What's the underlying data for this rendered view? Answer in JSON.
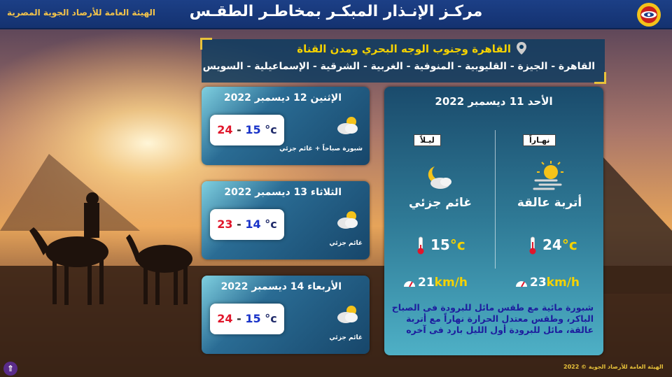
{
  "header": {
    "title": "مركـز الإنـذار المبكـر بمخاطـر الطقـس",
    "organization": "الهيئة العامة للأرصاد الجوية المصرية"
  },
  "region": {
    "name": "القاهرة وجنوب الوجه البحري ومدن القناة",
    "cities": "القاهرة - الجيزة - القليوبية - المنوفية - الغربية - الشرقية - الإسماعيلية - السويس"
  },
  "forecasts": [
    {
      "date": "الإثنين 12 ديسمبر 2022",
      "low": "15",
      "high": "24",
      "deg": "°c",
      "condition": "شبورة صباحاً + غائم جزئي",
      "icon": "cloud-sun-icon"
    },
    {
      "date": "الثلاثاء 13 ديسمبر 2022",
      "low": "14",
      "high": "23",
      "deg": "°c",
      "condition": "غائم جزئي",
      "icon": "cloud-sun-icon"
    },
    {
      "date": "الأربعاء 14 ديسمبر 2022",
      "low": "15",
      "high": "24",
      "deg": "°c",
      "condition": "غائم جزئي",
      "icon": "cloud-sun-icon"
    }
  ],
  "today": {
    "date": "الأحد 11 ديسمبر 2022",
    "day_label": "نهـاراً",
    "night_label": "ليـلاً",
    "day_condition": "أتربة عالقة",
    "night_condition": "غائم جزئي",
    "day_temp": "24",
    "night_temp": "15",
    "deg": "°c",
    "day_wind": "23",
    "night_wind": "21",
    "wind_unit": "km/h",
    "description": "شبورة مائية مع طقس مائل للبرودة فى الصباح الباكر، وطقس معتدل الحرارة نهاراً مع أتربة عالقة، مائل للبرودة أول الليل بارد فى آخره"
  },
  "footer": {
    "copyright": "الهيئة العامة للأرصاد الجوية © 2022",
    "scroll_button": "⇑"
  },
  "colors": {
    "accent_yellow": "#f5d200",
    "header_blue": "#1c3f86",
    "high_temp_red": "#e0162b",
    "low_temp_blue": "#1832c8",
    "description_blue": "#1d1d9e"
  }
}
